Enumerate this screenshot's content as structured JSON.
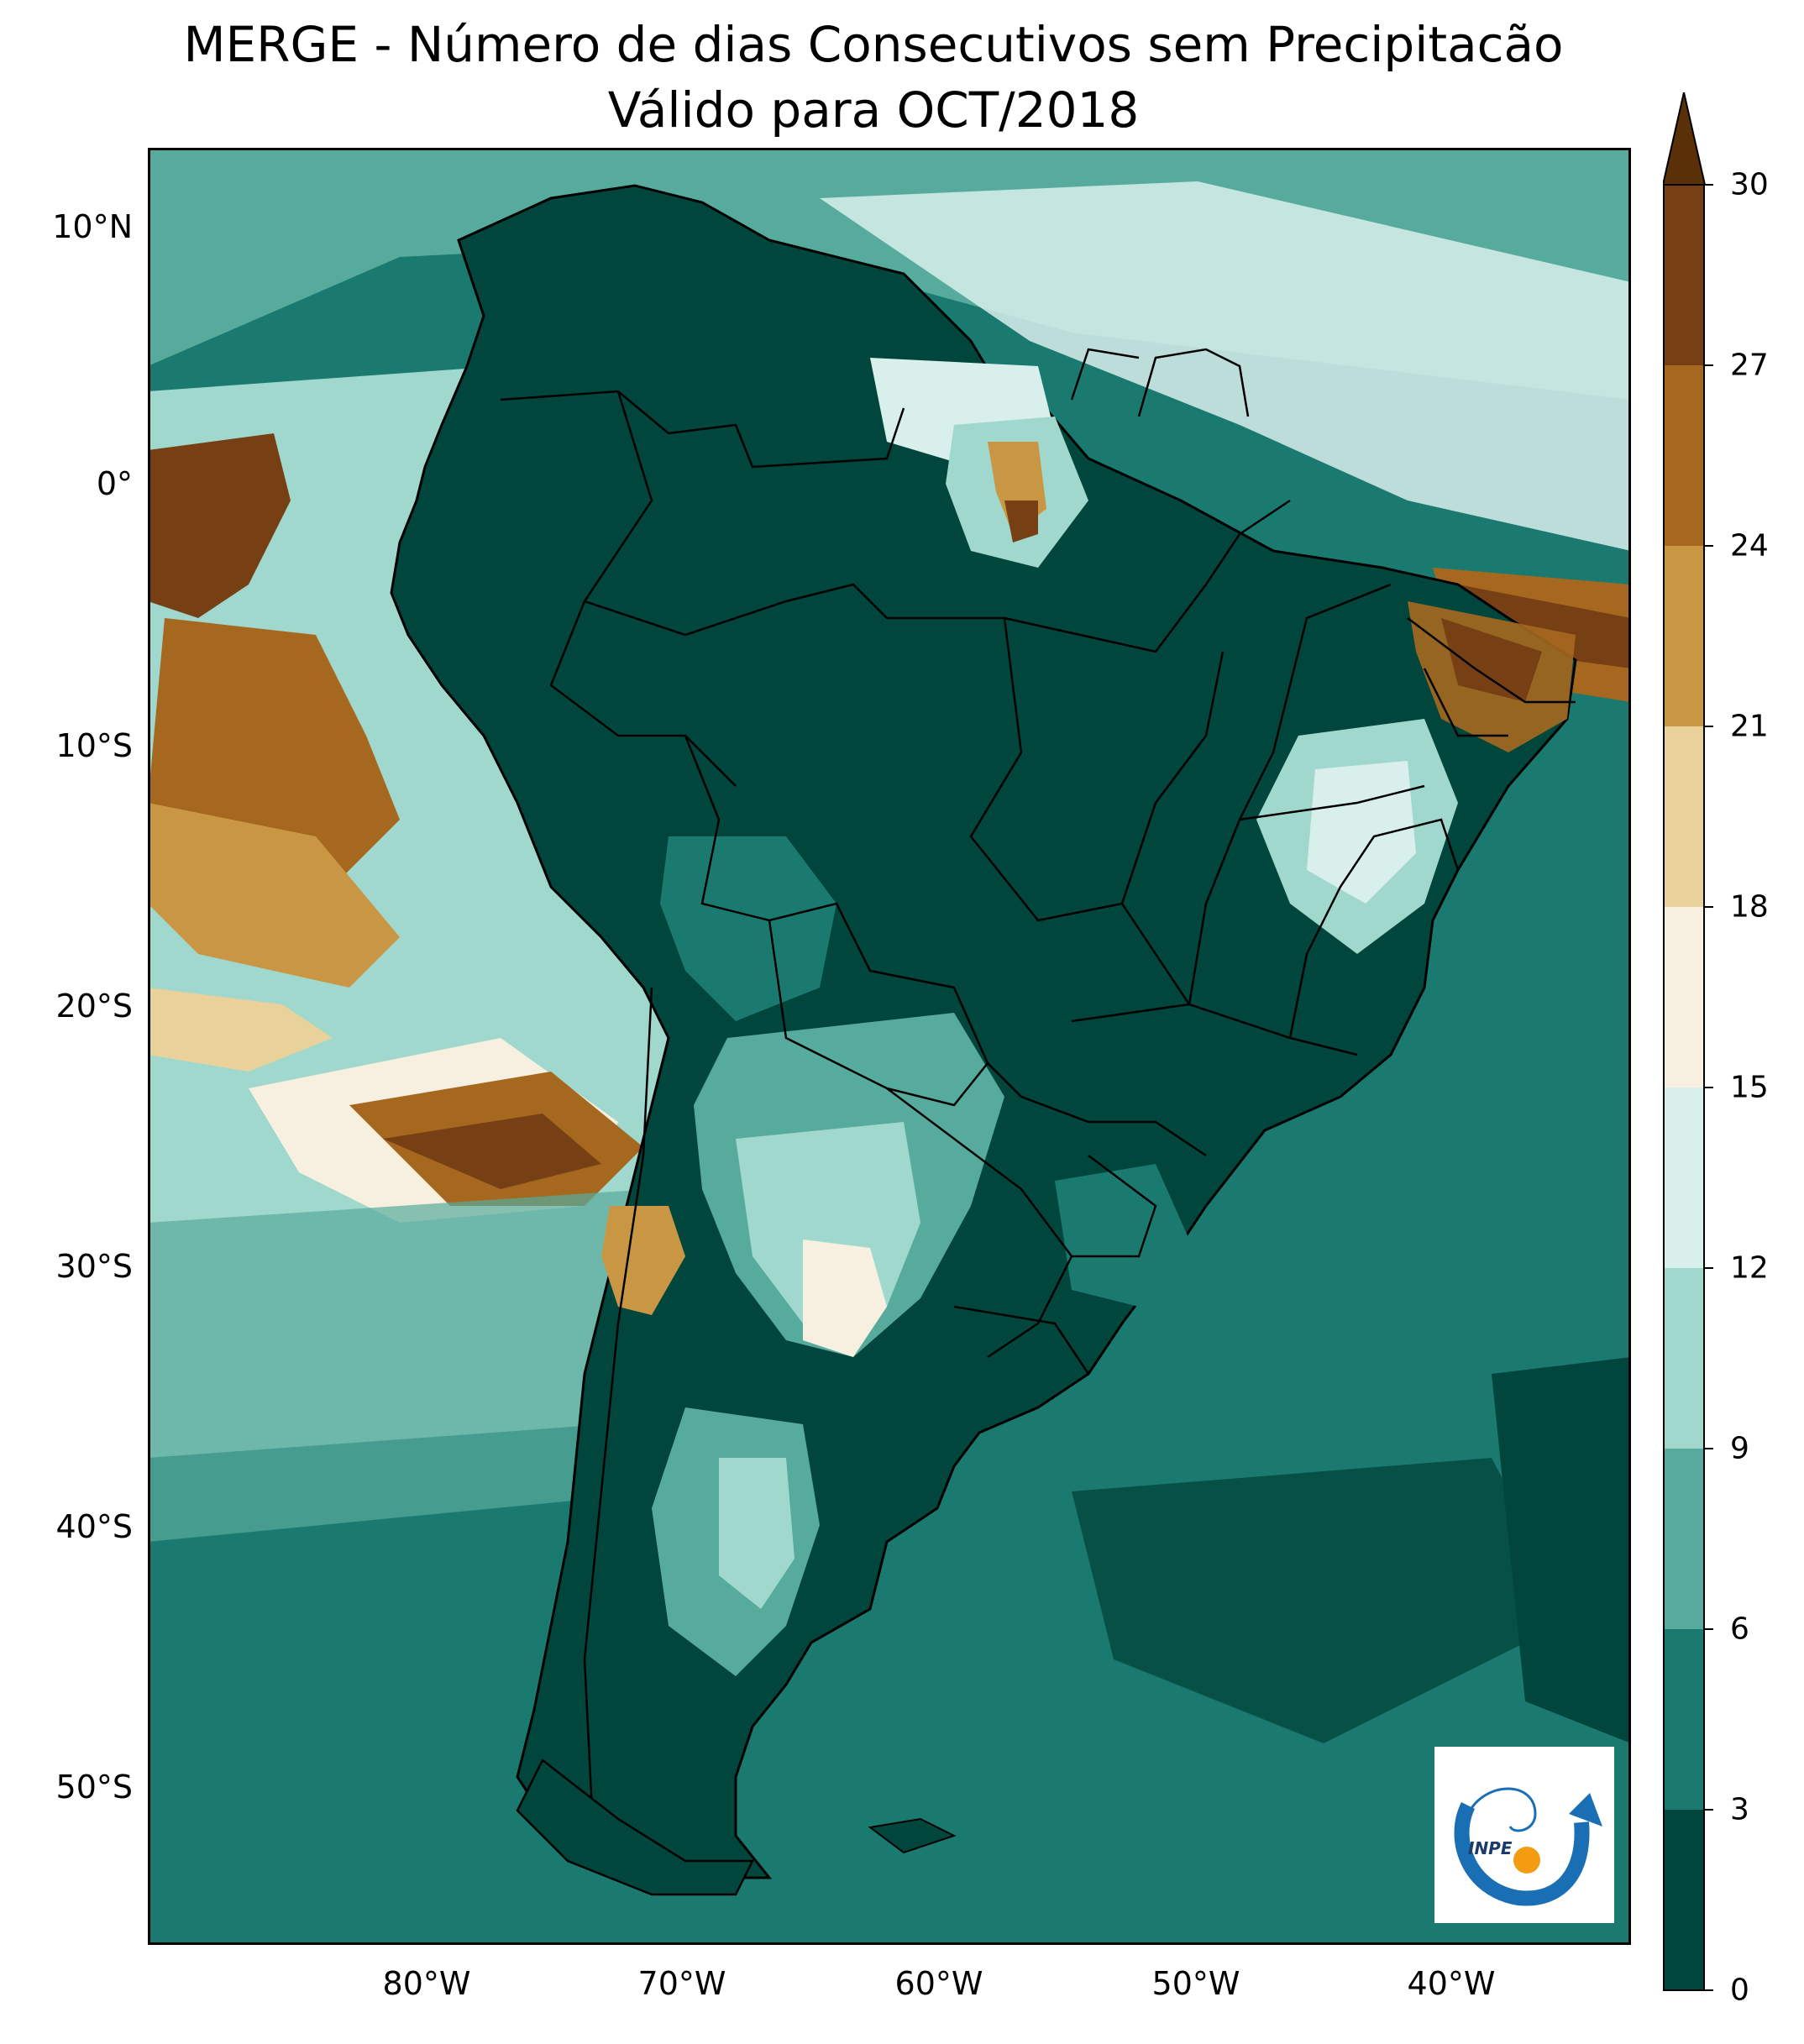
{
  "title": "MERGE - Número de dias Consecutivos sem Precipitacão",
  "subtitle": "Válido para OCT/2018",
  "map": {
    "region": "South America",
    "lat_ticks": [
      "10°N",
      "0°",
      "10°S",
      "20°S",
      "30°S",
      "40°S",
      "50°S"
    ],
    "lon_ticks": [
      "80°W",
      "70°W",
      "60°W",
      "50°W",
      "40°W"
    ]
  },
  "colorbar": {
    "ticks": [
      "0",
      "3",
      "6",
      "9",
      "12",
      "15",
      "18",
      "21",
      "24",
      "27",
      "30"
    ],
    "colors": [
      "#01463c",
      "#1b7a70",
      "#57ab9d",
      "#a0d8cd",
      "#d8efec",
      "#f7f0e0",
      "#e9d29a",
      "#c99744",
      "#a6681f",
      "#774014"
    ],
    "extend_color": "#5a3008"
  },
  "logo": {
    "text": "INPE",
    "colors": {
      "blue": "#1a6fb4",
      "orange": "#f39c12"
    }
  }
}
